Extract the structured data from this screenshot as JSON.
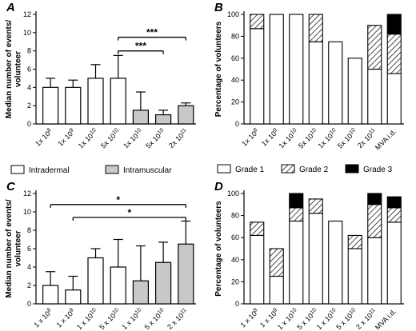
{
  "chart_data": [
    {
      "id": "A",
      "panel_label": "A",
      "type": "bar",
      "ylabel": "Median number of events/\nvolunteer",
      "xlabel": "",
      "ylim": [
        0,
        12
      ],
      "yticks": [
        0,
        2,
        4,
        6,
        8,
        10,
        12
      ],
      "categories": [
        {
          "base": "1x 10",
          "exp": "8"
        },
        {
          "base": "1x 10",
          "exp": "9"
        },
        {
          "base": "1x 10",
          "exp": "10"
        },
        {
          "base": "5x 10",
          "exp": "10"
        },
        {
          "base": "1x 10",
          "exp": "10"
        },
        {
          "base": "5x 10",
          "exp": "10"
        },
        {
          "base": "2x 10",
          "exp": "11"
        }
      ],
      "values": [
        4,
        4,
        5,
        5,
        1.5,
        1,
        2
      ],
      "errors": [
        1,
        0.8,
        1.5,
        2.5,
        2,
        0.5,
        0.3
      ],
      "groups": [
        "intradermal",
        "intradermal",
        "intradermal",
        "intradermal",
        "intramuscular",
        "intramuscular",
        "intramuscular"
      ],
      "legend": [
        {
          "label": "Intradermal",
          "group": "intradermal"
        },
        {
          "label": "Intramuscular",
          "group": "intramuscular"
        }
      ],
      "significance": [
        {
          "from": 3,
          "to": 6,
          "y": 9.5,
          "label": "***"
        },
        {
          "from": 3,
          "to": 5,
          "y": 8.0,
          "label": "***"
        }
      ],
      "grid": false
    },
    {
      "id": "B",
      "panel_label": "B",
      "type": "stacked-bar",
      "ylabel": "Percentage of volunteers",
      "xlabel": "",
      "ylim": [
        0,
        100
      ],
      "yticks": [
        0,
        20,
        40,
        60,
        80,
        100
      ],
      "categories": [
        {
          "base": "1x 10",
          "exp": "8"
        },
        {
          "base": "1x 10",
          "exp": "9"
        },
        {
          "base": "1x 10",
          "exp": "10"
        },
        {
          "base": "5x 10",
          "exp": "10"
        },
        {
          "base": "1x 10",
          "exp": "10"
        },
        {
          "base": "5x 10",
          "exp": "10"
        },
        {
          "base": "2x 10",
          "exp": "11"
        },
        {
          "base": "MVA i.d.",
          "exp": ""
        }
      ],
      "series": [
        {
          "name": "Grade 1",
          "style": "white",
          "values": [
            87,
            100,
            100,
            75,
            75,
            60,
            50,
            46
          ]
        },
        {
          "name": "Grade 2",
          "style": "hatch",
          "values": [
            13,
            0,
            0,
            25,
            0,
            0,
            40,
            36
          ]
        },
        {
          "name": "Grade 3",
          "style": "black",
          "values": [
            0,
            0,
            0,
            0,
            0,
            0,
            0,
            18
          ]
        }
      ],
      "grid": false
    },
    {
      "id": "C",
      "panel_label": "C",
      "type": "bar",
      "ylabel": "Median number of events/\nvolunteer",
      "xlabel": "",
      "ylim": [
        0,
        12
      ],
      "yticks": [
        0,
        2,
        4,
        6,
        8,
        10,
        12
      ],
      "categories": [
        {
          "base": "1 x 10",
          "exp": "8"
        },
        {
          "base": "1 x 10",
          "exp": "9"
        },
        {
          "base": "1 x 10",
          "exp": "10"
        },
        {
          "base": "5 x 10",
          "exp": "10"
        },
        {
          "base": "1 x 10",
          "exp": "10"
        },
        {
          "base": "5 x 10",
          "exp": "10"
        },
        {
          "base": "2 x 10",
          "exp": "11"
        }
      ],
      "values": [
        2,
        1.5,
        5,
        4,
        2.5,
        4.5,
        6.5
      ],
      "errors": [
        1.5,
        1.5,
        1,
        3,
        3.8,
        2.2,
        2.5
      ],
      "groups": [
        "intradermal",
        "intradermal",
        "intradermal",
        "intradermal",
        "intramuscular",
        "intramuscular",
        "intramuscular"
      ],
      "significance": [
        {
          "from": 0,
          "to": 6,
          "y": 10.8,
          "label": "*"
        },
        {
          "from": 1,
          "to": 6,
          "y": 9.4,
          "label": "*"
        }
      ],
      "grid": false
    },
    {
      "id": "D",
      "panel_label": "D",
      "type": "stacked-bar",
      "ylabel": "Percentage of volunteers",
      "xlabel": "",
      "ylim": [
        0,
        100
      ],
      "yticks": [
        0,
        20,
        40,
        60,
        80,
        100
      ],
      "categories": [
        {
          "base": "1 x 10",
          "exp": "8"
        },
        {
          "base": "1 x 10",
          "exp": "9"
        },
        {
          "base": "1 x 10",
          "exp": "10"
        },
        {
          "base": "5 x 10",
          "exp": "10"
        },
        {
          "base": "1 x 10",
          "exp": "10"
        },
        {
          "base": "5 x 10",
          "exp": "10"
        },
        {
          "base": "2 x 10",
          "exp": "11"
        },
        {
          "base": "MVA i.d.",
          "exp": ""
        }
      ],
      "series": [
        {
          "name": "Grade 1",
          "style": "white",
          "values": [
            62,
            25,
            75,
            82,
            75,
            50,
            60,
            74
          ]
        },
        {
          "name": "Grade 2",
          "style": "hatch",
          "values": [
            12,
            25,
            12,
            13,
            0,
            12,
            30,
            13
          ]
        },
        {
          "name": "Grade 3",
          "style": "black",
          "values": [
            0,
            0,
            13,
            0,
            0,
            0,
            10,
            10
          ]
        }
      ],
      "grid": false
    }
  ],
  "legend_B": [
    {
      "label": "Grade 1",
      "style": "white"
    },
    {
      "label": "Grade 2",
      "style": "hatch"
    },
    {
      "label": "Grade 3",
      "style": "black"
    }
  ],
  "colors": {
    "intradermal": "#ffffff",
    "intramuscular": "#c8c8c8",
    "grade1": "#ffffff",
    "grade3": "#000000",
    "stroke": "#000000"
  }
}
